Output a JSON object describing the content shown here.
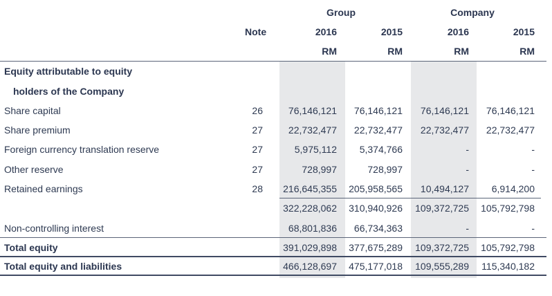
{
  "header": {
    "group_label": "Group",
    "company_label": "Company",
    "note_label": "Note",
    "years": [
      "2016",
      "2015",
      "2016",
      "2015"
    ],
    "currency": [
      "RM",
      "RM",
      "RM",
      "RM"
    ]
  },
  "section": {
    "line1": "Equity attributable to equity",
    "line2": "holders of the Company"
  },
  "rows": [
    {
      "label": "Share capital",
      "note": "26",
      "values": [
        "76,146,121",
        "76,146,121",
        "76,146,121",
        "76,146,121"
      ]
    },
    {
      "label": "Share premium",
      "note": "27",
      "values": [
        "22,732,477",
        "22,732,477",
        "22,732,477",
        "22,732,477"
      ]
    },
    {
      "label": "Foreign currency translation reserve",
      "note": "27",
      "values": [
        "5,975,112",
        "5,374,766",
        "-",
        "-"
      ]
    },
    {
      "label": "Other reserve",
      "note": "27",
      "values": [
        "728,997",
        "728,997",
        "-",
        "-"
      ]
    },
    {
      "label": "Retained earnings",
      "note": "28",
      "values": [
        "216,645,355",
        "205,958,565",
        "10,494,127",
        "6,914,200"
      ]
    }
  ],
  "subtotal": {
    "values": [
      "322,228,062",
      "310,940,926",
      "109,372,725",
      "105,792,798"
    ]
  },
  "nci": {
    "label": "Non-controlling interest",
    "values": [
      "68,801,836",
      "66,734,363",
      "-",
      "-"
    ]
  },
  "total_equity": {
    "label": "Total equity",
    "values": [
      "391,029,898",
      "377,675,289",
      "109,372,725",
      "105,792,798"
    ]
  },
  "total_eq_liab": {
    "label": "Total equity and liabilities",
    "values": [
      "466,128,697",
      "475,177,018",
      "109,555,289",
      "115,340,182"
    ]
  }
}
